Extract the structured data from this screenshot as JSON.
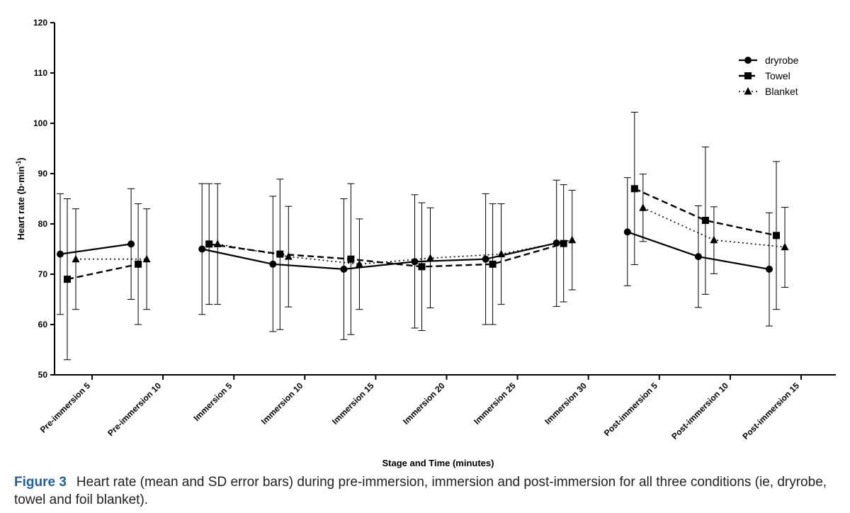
{
  "chart_data": {
    "type": "line",
    "title": "",
    "xlabel": "Stage and Time (minutes)",
    "ylabel": "Heart rate (b·min",
    "ylabel_sup": "-1",
    "ylabel_close": ")",
    "ylim": [
      50,
      120
    ],
    "yticks": [
      50,
      60,
      70,
      80,
      90,
      100,
      110,
      120
    ],
    "categories": [
      "Pre-immersion 5",
      "Pre-immersion 10",
      "Immersion 5",
      "Immersion 10",
      "Immersion 15",
      "Immersion 20",
      "Immersion 25",
      "Immersion 30",
      "Post-immersion 5",
      "Post-immersion 10",
      "Post-immersion 15"
    ],
    "legend_position": "top-right",
    "series": [
      {
        "name": "dryrobe",
        "marker": "circle",
        "dash": "solid",
        "points": [
          {
            "x": 0.0,
            "y": 74,
            "lo": 62,
            "hi": 86
          },
          {
            "x": 1.0,
            "y": 76,
            "lo": 65,
            "hi": 87
          },
          {
            "x": 2.0,
            "y": 75,
            "lo": 62,
            "hi": 88
          },
          {
            "x": 3.0,
            "y": 72,
            "lo": 58.6,
            "hi": 85.5
          },
          {
            "x": 4.0,
            "y": 71,
            "lo": 57,
            "hi": 85
          },
          {
            "x": 5.0,
            "y": 72.5,
            "lo": 59.3,
            "hi": 85.8
          },
          {
            "x": 6.0,
            "y": 73,
            "lo": 60,
            "hi": 86
          },
          {
            "x": 7.0,
            "y": 76.2,
            "lo": 63.6,
            "hi": 88.7
          },
          {
            "x": 8.0,
            "y": 78.4,
            "lo": 67.7,
            "hi": 89.2
          },
          {
            "x": 9.0,
            "y": 73.5,
            "lo": 63.4,
            "hi": 83.6
          },
          {
            "x": 10.0,
            "y": 71,
            "lo": 59.7,
            "hi": 82.2
          }
        ]
      },
      {
        "name": "Towel",
        "marker": "square",
        "dash": "dashed",
        "points": [
          {
            "x": 0.0,
            "y": 69,
            "lo": 53,
            "hi": 85
          },
          {
            "x": 1.0,
            "y": 72,
            "lo": 60,
            "hi": 84
          },
          {
            "x": 2.0,
            "y": 76,
            "lo": 64,
            "hi": 88
          },
          {
            "x": 3.0,
            "y": 74,
            "lo": 59,
            "hi": 88.9
          },
          {
            "x": 4.0,
            "y": 73,
            "lo": 58,
            "hi": 88
          },
          {
            "x": 5.0,
            "y": 71.5,
            "lo": 58.8,
            "hi": 84.2
          },
          {
            "x": 6.0,
            "y": 72,
            "lo": 60,
            "hi": 84
          },
          {
            "x": 7.0,
            "y": 76.1,
            "lo": 64.5,
            "hi": 87.8
          },
          {
            "x": 8.0,
            "y": 87,
            "lo": 71.9,
            "hi": 102.2
          },
          {
            "x": 9.0,
            "y": 80.7,
            "lo": 66,
            "hi": 95.3
          },
          {
            "x": 10.0,
            "y": 77.7,
            "lo": 63,
            "hi": 92.4
          }
        ]
      },
      {
        "name": "Blanket",
        "marker": "triangle",
        "dash": "dotted",
        "points": [
          {
            "x": 0.0,
            "y": 73,
            "lo": 63,
            "hi": 83
          },
          {
            "x": 1.0,
            "y": 73,
            "lo": 63,
            "hi": 83
          },
          {
            "x": 2.0,
            "y": 76,
            "lo": 64,
            "hi": 88
          },
          {
            "x": 3.0,
            "y": 73.5,
            "lo": 63.5,
            "hi": 83.5
          },
          {
            "x": 4.0,
            "y": 72,
            "lo": 63,
            "hi": 81
          },
          {
            "x": 5.0,
            "y": 73.2,
            "lo": 63.3,
            "hi": 83.2
          },
          {
            "x": 6.0,
            "y": 74,
            "lo": 64,
            "hi": 84
          },
          {
            "x": 7.0,
            "y": 76.8,
            "lo": 66.9,
            "hi": 86.7
          },
          {
            "x": 8.0,
            "y": 83.2,
            "lo": 76.5,
            "hi": 89.9
          },
          {
            "x": 9.0,
            "y": 76.8,
            "lo": 70.1,
            "hi": 83.4
          },
          {
            "x": 10.0,
            "y": 75.4,
            "lo": 67.4,
            "hi": 83.3
          }
        ]
      }
    ]
  },
  "caption": {
    "label": "Figure 3",
    "text": "Heart rate (mean and SD error bars) during pre-immersion, immersion and post-immersion for all three conditions (ie, dryrobe, towel and foil blanket)."
  }
}
